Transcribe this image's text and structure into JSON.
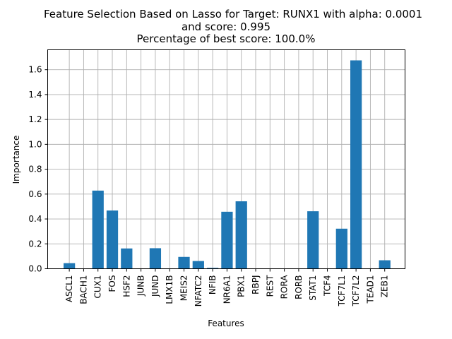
{
  "chart_data": {
    "type": "bar",
    "title_lines": [
      "Feature Selection Based on Lasso for Target: RUNX1 with alpha: 0.0001",
      "and score: 0.995",
      "Percentage of best score: 100.0%"
    ],
    "xlabel": "Features",
    "ylabel": "Importance",
    "categories": [
      "ASCL1",
      "BACH1",
      "CUX1",
      "FOS",
      "HSF2",
      "JUNB",
      "JUND",
      "LMX1B",
      "MEIS2",
      "NFATC2",
      "NFIB",
      "NR6A1",
      "PBX1",
      "RBPJ",
      "REST",
      "RORA",
      "RORB",
      "STAT1",
      "TCF4",
      "TCF7L1",
      "TCF7L2",
      "TEAD1",
      "ZEB1"
    ],
    "values": [
      0.045,
      0.0,
      0.628,
      0.468,
      0.163,
      0.0,
      0.165,
      0.0,
      0.095,
      0.062,
      0.007,
      0.458,
      0.542,
      0.0,
      0.0,
      0.0,
      0.0,
      0.462,
      0.0,
      0.322,
      1.675,
      0.0,
      0.068
    ],
    "ylim": [
      0,
      1.76
    ],
    "yticks": [
      "0.0",
      "0.2",
      "0.4",
      "0.6",
      "0.8",
      "1.0",
      "1.2",
      "1.4",
      "1.6"
    ],
    "grid": true,
    "bar_color": "#1f77b4",
    "grid_color": "#b0b0b0"
  }
}
